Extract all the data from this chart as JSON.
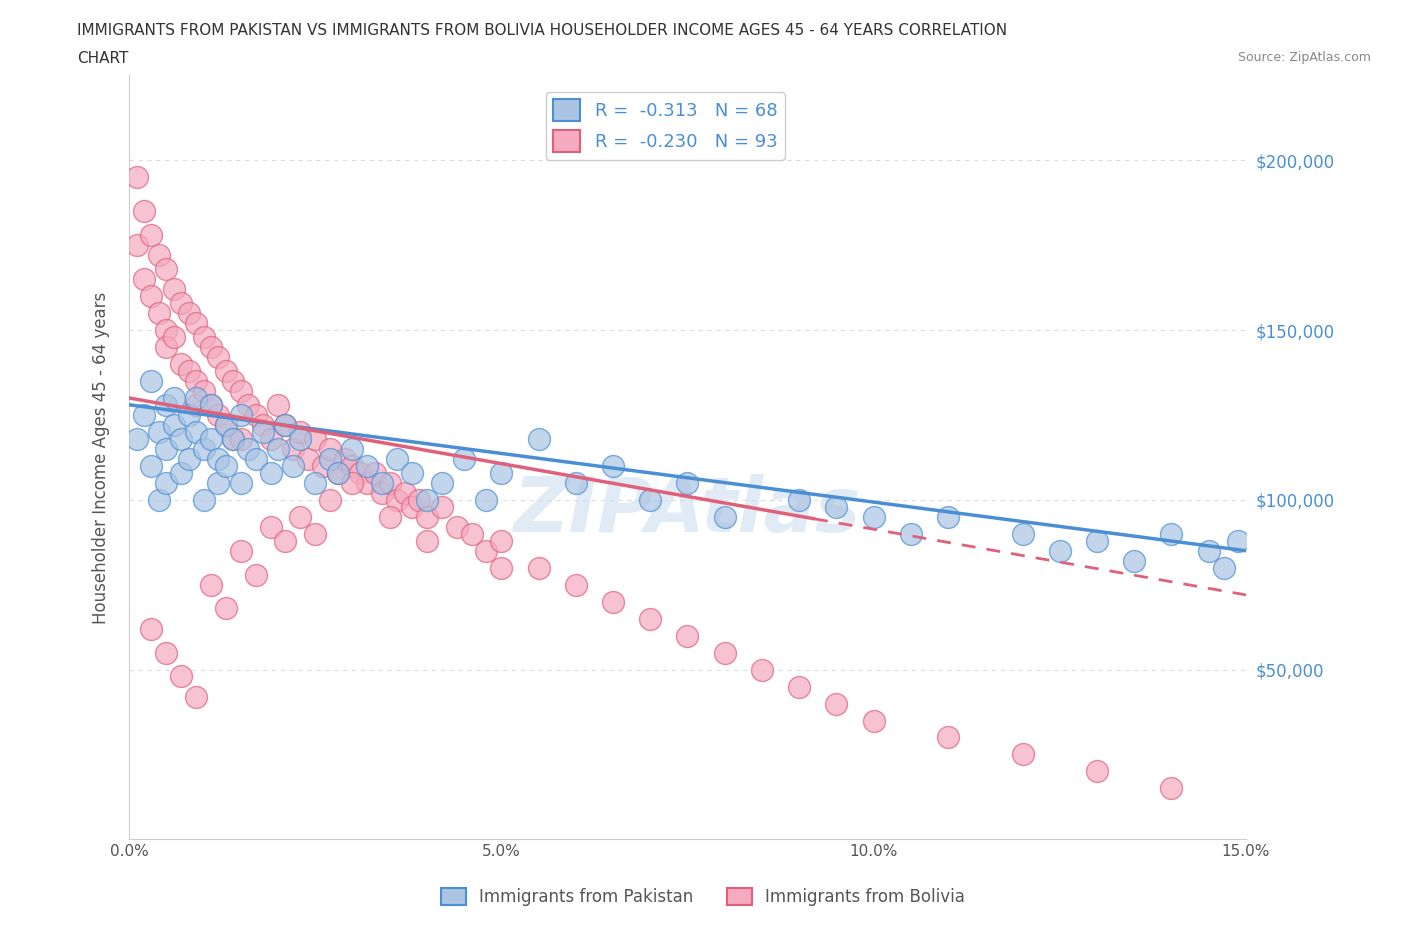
{
  "title_line1": "IMMIGRANTS FROM PAKISTAN VS IMMIGRANTS FROM BOLIVIA HOUSEHOLDER INCOME AGES 45 - 64 YEARS CORRELATION",
  "title_line2": "CHART",
  "source_text": "Source: ZipAtlas.com",
  "ylabel": "Householder Income Ages 45 - 64 years",
  "x_min": 0.0,
  "x_max": 0.15,
  "y_min": 0,
  "y_max": 225000,
  "y_ticks": [
    50000,
    100000,
    150000,
    200000
  ],
  "y_tick_labels": [
    "$50,000",
    "$100,000",
    "$150,000",
    "$200,000"
  ],
  "x_tick_labels": [
    "0.0%",
    "5.0%",
    "10.0%",
    "15.0%"
  ],
  "x_ticks": [
    0.0,
    0.05,
    0.1,
    0.15
  ],
  "pakistan_color": "#aac4e2",
  "bolivia_color": "#f5aabf",
  "pakistan_line_color": "#4a8fd4",
  "bolivia_line_color": "#e0607a",
  "pakistan_R": -0.313,
  "pakistan_N": 68,
  "bolivia_R": -0.23,
  "bolivia_N": 93,
  "legend_label_pakistan": "Immigrants from Pakistan",
  "legend_label_bolivia": "Immigrants from Bolivia",
  "watermark": "ZIPAtlas",
  "background_color": "#ffffff",
  "grid_color": "#dddddd",
  "pakistan_line_x0": 0.0,
  "pakistan_line_y0": 128000,
  "pakistan_line_x1": 0.15,
  "pakistan_line_y1": 85000,
  "bolivia_line_x0": 0.0,
  "bolivia_line_y0": 130000,
  "bolivia_line_x1": 0.15,
  "bolivia_line_y1": 72000,
  "pakistan_scatter_x": [
    0.001,
    0.002,
    0.003,
    0.003,
    0.004,
    0.004,
    0.005,
    0.005,
    0.005,
    0.006,
    0.006,
    0.007,
    0.007,
    0.008,
    0.008,
    0.009,
    0.009,
    0.01,
    0.01,
    0.011,
    0.011,
    0.012,
    0.012,
    0.013,
    0.013,
    0.014,
    0.015,
    0.015,
    0.016,
    0.017,
    0.018,
    0.019,
    0.02,
    0.021,
    0.022,
    0.023,
    0.025,
    0.027,
    0.028,
    0.03,
    0.032,
    0.034,
    0.036,
    0.038,
    0.04,
    0.042,
    0.045,
    0.048,
    0.05,
    0.055,
    0.06,
    0.065,
    0.07,
    0.075,
    0.08,
    0.09,
    0.095,
    0.1,
    0.105,
    0.11,
    0.12,
    0.125,
    0.13,
    0.135,
    0.14,
    0.145,
    0.147,
    0.149
  ],
  "pakistan_scatter_y": [
    118000,
    125000,
    110000,
    135000,
    120000,
    100000,
    128000,
    115000,
    105000,
    122000,
    130000,
    118000,
    108000,
    125000,
    112000,
    120000,
    130000,
    115000,
    100000,
    128000,
    118000,
    112000,
    105000,
    122000,
    110000,
    118000,
    125000,
    105000,
    115000,
    112000,
    120000,
    108000,
    115000,
    122000,
    110000,
    118000,
    105000,
    112000,
    108000,
    115000,
    110000,
    105000,
    112000,
    108000,
    100000,
    105000,
    112000,
    100000,
    108000,
    118000,
    105000,
    110000,
    100000,
    105000,
    95000,
    100000,
    98000,
    95000,
    90000,
    95000,
    90000,
    85000,
    88000,
    82000,
    90000,
    85000,
    80000,
    88000
  ],
  "bolivia_scatter_x": [
    0.001,
    0.001,
    0.002,
    0.002,
    0.003,
    0.003,
    0.004,
    0.004,
    0.005,
    0.005,
    0.005,
    0.006,
    0.006,
    0.007,
    0.007,
    0.008,
    0.008,
    0.009,
    0.009,
    0.009,
    0.01,
    0.01,
    0.011,
    0.011,
    0.012,
    0.012,
    0.013,
    0.013,
    0.014,
    0.014,
    0.015,
    0.015,
    0.016,
    0.017,
    0.018,
    0.019,
    0.02,
    0.021,
    0.022,
    0.023,
    0.024,
    0.025,
    0.026,
    0.027,
    0.028,
    0.029,
    0.03,
    0.031,
    0.032,
    0.033,
    0.034,
    0.035,
    0.036,
    0.037,
    0.038,
    0.039,
    0.04,
    0.042,
    0.044,
    0.046,
    0.048,
    0.05,
    0.055,
    0.06,
    0.065,
    0.07,
    0.075,
    0.08,
    0.085,
    0.09,
    0.095,
    0.1,
    0.11,
    0.12,
    0.13,
    0.14,
    0.003,
    0.005,
    0.007,
    0.009,
    0.011,
    0.013,
    0.015,
    0.017,
    0.019,
    0.021,
    0.023,
    0.025,
    0.027,
    0.03,
    0.035,
    0.04,
    0.05
  ],
  "bolivia_scatter_y": [
    195000,
    175000,
    185000,
    165000,
    178000,
    160000,
    172000,
    155000,
    168000,
    150000,
    145000,
    162000,
    148000,
    158000,
    140000,
    155000,
    138000,
    152000,
    135000,
    128000,
    148000,
    132000,
    145000,
    128000,
    142000,
    125000,
    138000,
    122000,
    135000,
    118000,
    132000,
    118000,
    128000,
    125000,
    122000,
    118000,
    128000,
    122000,
    115000,
    120000,
    112000,
    118000,
    110000,
    115000,
    108000,
    112000,
    110000,
    108000,
    105000,
    108000,
    102000,
    105000,
    100000,
    102000,
    98000,
    100000,
    95000,
    98000,
    92000,
    90000,
    85000,
    88000,
    80000,
    75000,
    70000,
    65000,
    60000,
    55000,
    50000,
    45000,
    40000,
    35000,
    30000,
    25000,
    20000,
    15000,
    62000,
    55000,
    48000,
    42000,
    75000,
    68000,
    85000,
    78000,
    92000,
    88000,
    95000,
    90000,
    100000,
    105000,
    95000,
    88000,
    80000
  ]
}
